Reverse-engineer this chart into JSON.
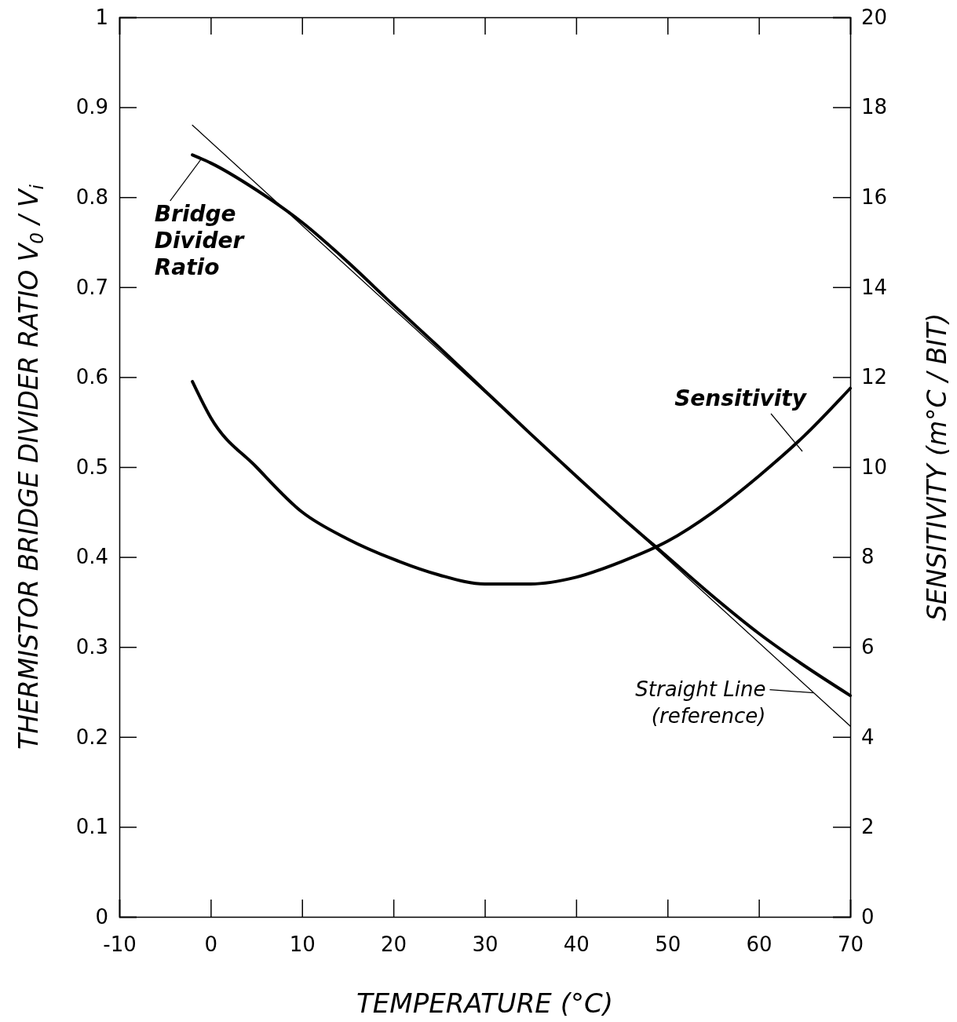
{
  "chart_data": {
    "type": "line",
    "xlabel": "TEMPERATURE (°C)",
    "ylabel": "THERMISTOR BRIDGE DIVIDER RATIO V$_{0}$ / V$_{i}$",
    "y2label": "SENSITIVITY (m°C / BIT)",
    "xlim": [
      -10,
      70
    ],
    "xticks": [
      -10,
      0,
      10,
      20,
      30,
      40,
      50,
      60,
      70
    ],
    "ylim": [
      0,
      1
    ],
    "yticks": [
      0,
      0.1,
      0.2,
      0.3,
      0.4,
      0.5,
      0.6,
      0.7,
      0.8,
      0.9,
      1
    ],
    "y2lim": [
      0,
      20
    ],
    "y2ticks": [
      0,
      2,
      4,
      6,
      8,
      10,
      12,
      14,
      16,
      18,
      20
    ],
    "grid": false,
    "series": [
      {
        "color": "#000000",
        "x": [
          -2,
          0,
          5,
          10,
          15,
          20,
          25,
          30,
          35,
          40,
          45,
          50,
          55,
          60,
          65,
          70
        ],
        "values": [
          0.847,
          0.838,
          0.808,
          0.772,
          0.728,
          0.68,
          0.633,
          0.585,
          0.537,
          0.49,
          0.444,
          0.4,
          0.356,
          0.315,
          0.279,
          0.246
        ]
      },
      {
        "color": "#000000",
        "x": [
          -2,
          70
        ],
        "values": [
          0.88,
          0.212
        ]
      },
      {
        "color": "#000000",
        "axis": "y2",
        "x": [
          -2,
          0,
          5,
          10,
          15,
          20,
          25,
          30,
          35,
          40,
          45,
          50,
          55,
          60,
          65,
          70
        ],
        "values": [
          11.9,
          11.1,
          10.0,
          9.0,
          8.4,
          7.95,
          7.6,
          7.4,
          7.4,
          7.55,
          7.9,
          8.35,
          9.0,
          9.8,
          10.7,
          11.75
        ]
      }
    ],
    "annotations": [
      {
        "text": "Bridge Divider Ratio",
        "x": -1,
        "y": 0.843
      },
      "Sensitivity",
      {
        "text": "Straight Line (reference)",
        "x": 66,
        "y": 0.249
      }
    ]
  }
}
